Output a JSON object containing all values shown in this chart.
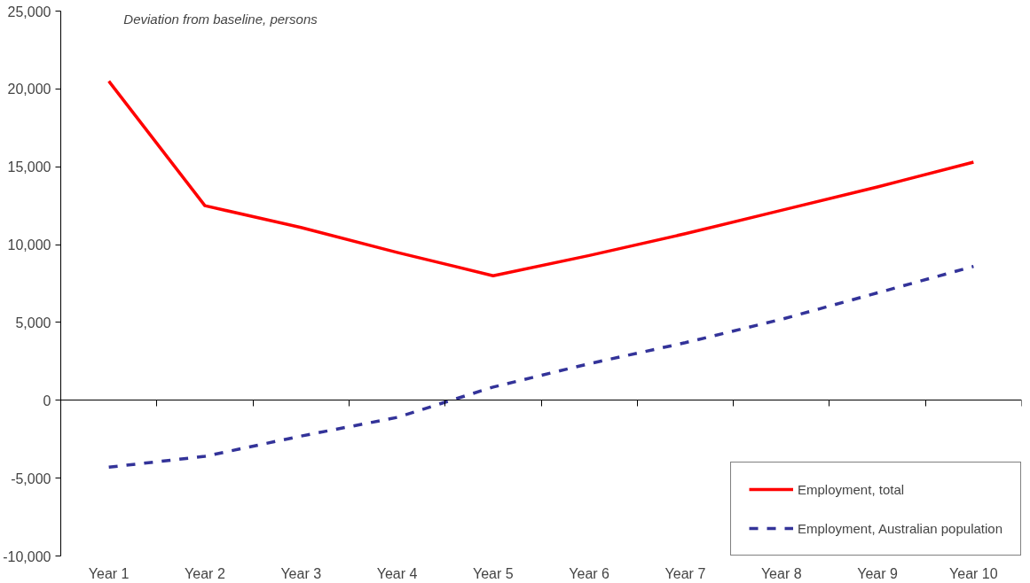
{
  "chart_data": {
    "type": "line",
    "ylabel": "Deviation from baseline, persons",
    "categories": [
      "Year 1",
      "Year 2",
      "Year 3",
      "Year 4",
      "Year 5",
      "Year 6",
      "Year 7",
      "Year 8",
      "Year 9",
      "Year 10"
    ],
    "series": [
      {
        "name": "Employment, total",
        "color": "#ff0000",
        "line_style": "solid",
        "values": [
          20500,
          12500,
          11100,
          9500,
          8000,
          9300,
          10700,
          12200,
          13700,
          15300
        ]
      },
      {
        "name": "Employment, Australian population",
        "color": "#333399",
        "line_style": "dashed",
        "values": [
          -4300,
          -3600,
          -2300,
          -1100,
          850,
          2350,
          3700,
          5200,
          6900,
          8600
        ]
      }
    ],
    "ylim": [
      -10000,
      25000
    ],
    "yticks": [
      {
        "value": -10000,
        "label": "-10,000"
      },
      {
        "value": -5000,
        "label": "-5,000"
      },
      0,
      {
        "value": 5000,
        "label": "5,000"
      },
      {
        "value": 10000,
        "label": "10,000"
      },
      {
        "value": 15000,
        "label": "15,000"
      },
      {
        "value": 20000,
        "label": "20,000"
      },
      {
        "value": 25000,
        "label": "25,000"
      }
    ],
    "legend": "bottom right",
    "marker": "none"
  }
}
